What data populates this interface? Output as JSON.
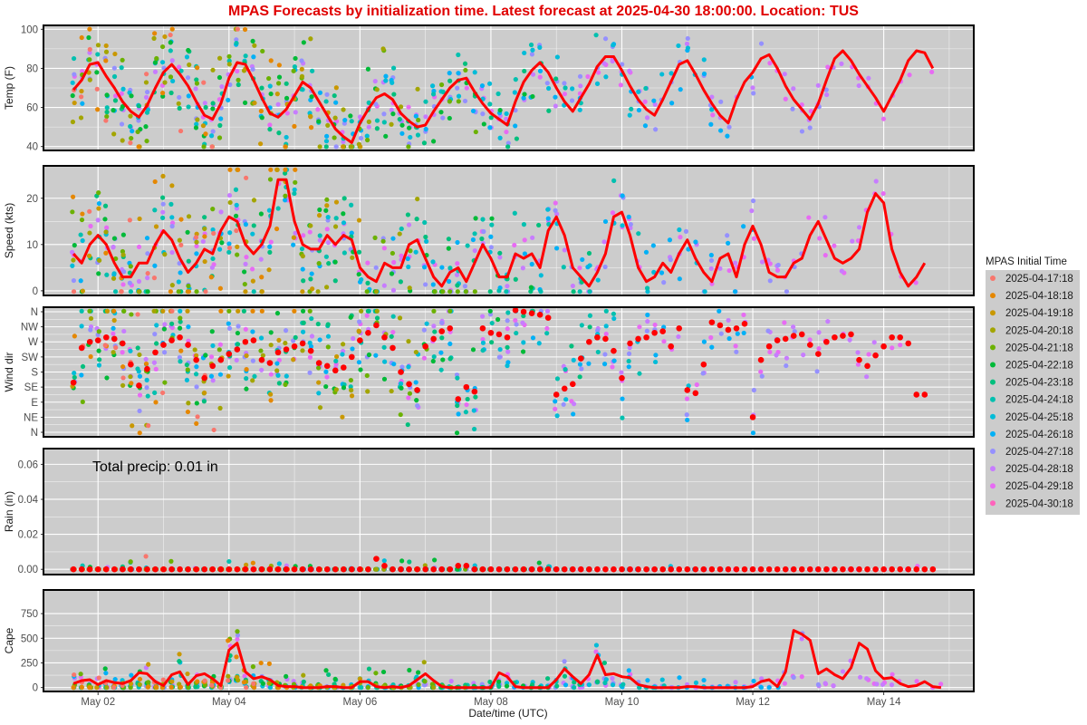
{
  "figure": {
    "title": "MPAS Forecasts by initialization time. Latest forecast at 2025-04-30 18:00:00.  Location: TUS",
    "xlabel": "Date/time (UTC)"
  },
  "legend": {
    "title": "MPAS Initial Time",
    "placement": "right",
    "items": [
      {
        "label": "2025-04-17:18",
        "color": "#F8766D"
      },
      {
        "label": "2025-04-18:18",
        "color": "#E58700"
      },
      {
        "label": "2025-04-19:18",
        "color": "#C99800"
      },
      {
        "label": "2025-04-20:18",
        "color": "#A3A500"
      },
      {
        "label": "2025-04-21:18",
        "color": "#6BB100"
      },
      {
        "label": "2025-04-22:18",
        "color": "#00BA38"
      },
      {
        "label": "2025-04-23:18",
        "color": "#00BF7D"
      },
      {
        "label": "2025-04-24:18",
        "color": "#00C0AF"
      },
      {
        "label": "2025-04-25:18",
        "color": "#00BCD8"
      },
      {
        "label": "2025-04-26:18",
        "color": "#00B0F6"
      },
      {
        "label": "2025-04-27:18",
        "color": "#9590FF"
      },
      {
        "label": "2025-04-28:18",
        "color": "#C77CFF"
      },
      {
        "label": "2025-04-29:18",
        "color": "#E76BF3"
      },
      {
        "label": "2025-04-30:18",
        "color": "#FF62BC"
      }
    ]
  },
  "colors": {
    "panel_bg": "#cccccc",
    "grid": "#ffffff",
    "latest_line": "#ff0000",
    "title": "#e00000"
  },
  "chart_data": [
    {
      "type": "line",
      "ylabel": "Temp (F)",
      "ylim": [
        38,
        102
      ],
      "yticks": [
        40,
        60,
        80,
        100
      ],
      "xticks": [
        {
          "x": "2025-05-02",
          "label": "May 02"
        },
        {
          "x": "2025-05-04",
          "label": "May 04"
        },
        {
          "x": "2025-05-06",
          "label": "May 06"
        },
        {
          "x": "2025-05-08",
          "label": "May 08"
        },
        {
          "x": "2025-05-10",
          "label": "May 10"
        },
        {
          "x": "2025-05-12",
          "label": "May 12"
        },
        {
          "x": "2025-05-14",
          "label": "May 14"
        }
      ],
      "grid": true,
      "series": [
        {
          "latest": true,
          "x": [
            "2025-05-01T15:00",
            "2025-05-01T18:00",
            "2025-05-01T21:00",
            "2025-05-02T00:00",
            "2025-05-02T03:00",
            "2025-05-02T06:00",
            "2025-05-02T09:00",
            "2025-05-02T12:00",
            "2025-05-02T15:00",
            "2025-05-02T18:00",
            "2025-05-02T21:00",
            "2025-05-03T00:00",
            "2025-05-03T03:00",
            "2025-05-03T06:00",
            "2025-05-03T09:00",
            "2025-05-03T12:00",
            "2025-05-03T15:00",
            "2025-05-03T18:00",
            "2025-05-03T21:00",
            "2025-05-04T00:00",
            "2025-05-04T03:00",
            "2025-05-04T06:00",
            "2025-05-04T09:00",
            "2025-05-04T12:00",
            "2025-05-04T15:00",
            "2025-05-04T18:00",
            "2025-05-04T21:00",
            "2025-05-05T00:00",
            "2025-05-05T03:00",
            "2025-05-05T06:00",
            "2025-05-05T09:00",
            "2025-05-05T12:00",
            "2025-05-05T15:00",
            "2025-05-05T18:00",
            "2025-05-05T21:00",
            "2025-05-06T00:00",
            "2025-05-06T03:00",
            "2025-05-06T06:00",
            "2025-05-06T09:00",
            "2025-05-06T12:00",
            "2025-05-06T15:00",
            "2025-05-06T18:00",
            "2025-05-06T21:00",
            "2025-05-07T00:00",
            "2025-05-07T03:00",
            "2025-05-07T06:00",
            "2025-05-07T09:00",
            "2025-05-07T12:00",
            "2025-05-07T15:00",
            "2025-05-07T18:00",
            "2025-05-07T21:00",
            "2025-05-08T00:00",
            "2025-05-08T03:00",
            "2025-05-08T06:00",
            "2025-05-08T09:00",
            "2025-05-08T12:00",
            "2025-05-08T15:00",
            "2025-05-08T18:00",
            "2025-05-08T21:00",
            "2025-05-09T00:00",
            "2025-05-09T03:00",
            "2025-05-09T06:00",
            "2025-05-09T09:00",
            "2025-05-09T12:00",
            "2025-05-09T15:00",
            "2025-05-09T18:00",
            "2025-05-09T21:00",
            "2025-05-10T00:00",
            "2025-05-10T03:00",
            "2025-05-10T06:00",
            "2025-05-10T09:00",
            "2025-05-10T12:00",
            "2025-05-10T15:00",
            "2025-05-10T18:00",
            "2025-05-10T21:00",
            "2025-05-11T00:00",
            "2025-05-11T03:00",
            "2025-05-11T06:00",
            "2025-05-11T09:00",
            "2025-05-11T12:00",
            "2025-05-11T15:00",
            "2025-05-11T18:00",
            "2025-05-11T21:00",
            "2025-05-12T00:00",
            "2025-05-12T03:00",
            "2025-05-12T06:00",
            "2025-05-12T09:00",
            "2025-05-12T12:00",
            "2025-05-12T15:00",
            "2025-05-12T18:00",
            "2025-05-12T21:00",
            "2025-05-13T00:00",
            "2025-05-13T03:00",
            "2025-05-13T06:00",
            "2025-05-13T09:00",
            "2025-05-13T12:00",
            "2025-05-13T15:00",
            "2025-05-13T18:00",
            "2025-05-13T21:00",
            "2025-05-14T00:00",
            "2025-05-14T03:00",
            "2025-05-14T06:00",
            "2025-05-14T09:00",
            "2025-05-14T12:00",
            "2025-05-14T15:00",
            "2025-05-14T18:00"
          ],
          "values": [
            69,
            74,
            82,
            83,
            76,
            70,
            63,
            58,
            55,
            61,
            70,
            78,
            82,
            77,
            71,
            63,
            56,
            54,
            62,
            75,
            83,
            82,
            74,
            65,
            57,
            55,
            59,
            66,
            73,
            70,
            63,
            56,
            49,
            45,
            42,
            52,
            59,
            65,
            67,
            64,
            57,
            53,
            50,
            51,
            58,
            64,
            70,
            74,
            75,
            68,
            62,
            57,
            54,
            51,
            63,
            73,
            79,
            83,
            78,
            70,
            63,
            58,
            65,
            72,
            81,
            86,
            86,
            79,
            71,
            64,
            59,
            56,
            64,
            73,
            82,
            84,
            77,
            69,
            62,
            56,
            52,
            64,
            73,
            78,
            85,
            87,
            80,
            71,
            64,
            59,
            54,
            62,
            74,
            85,
            89,
            84,
            77,
            71,
            65,
            58,
            66,
            74,
            84,
            89,
            88,
            80
          ]
        }
      ]
    },
    {
      "type": "line",
      "ylabel": "Speed (kts)",
      "ylim": [
        -1,
        27
      ],
      "yticks": [
        0,
        10,
        20
      ],
      "grid": true,
      "series": [
        {
          "latest": true,
          "values": [
            8,
            6,
            10,
            12,
            10,
            6,
            3,
            3,
            6,
            6,
            10,
            13,
            11,
            7,
            4,
            6,
            9,
            8,
            13,
            16,
            15,
            10,
            8,
            10,
            14,
            24,
            24,
            15,
            10,
            9,
            9,
            12,
            10,
            12,
            11,
            5,
            3,
            2,
            6,
            5,
            5,
            10,
            11,
            7,
            3,
            1,
            4,
            5,
            2,
            6,
            10,
            7,
            3,
            3,
            8,
            7,
            8,
            5,
            13,
            16,
            12,
            5,
            3,
            1,
            4,
            8,
            16,
            17,
            12,
            5,
            2,
            3,
            6,
            4,
            8,
            11,
            7,
            4,
            2,
            7,
            8,
            3,
            10,
            14,
            10,
            4,
            3,
            3,
            6,
            7,
            12,
            15,
            11,
            7,
            6,
            7,
            9,
            17,
            21,
            19,
            9,
            4,
            1,
            3,
            6
          ]
        }
      ]
    },
    {
      "type": "line",
      "ylabel": "Wind dir",
      "ylim": [
        -0.3,
        8.3
      ],
      "yticks": [
        0,
        1,
        2,
        3,
        4,
        5,
        6,
        7,
        8
      ],
      "ytick_labels": [
        "N",
        "NE",
        "E",
        "SE",
        "S",
        "SW",
        "W",
        "NW",
        "N"
      ],
      "grid": true,
      "series": [
        {
          "latest": true,
          "values": [
            3.3,
            5.6,
            6.0,
            6.1,
            6.3,
            6.2,
            5.9,
            4.5,
            3.1,
            4.2,
            5.3,
            5.8,
            6.1,
            6.3,
            5.8,
            4.8,
            3.6,
            4.4,
            4.8,
            5.2,
            5.5,
            6.0,
            6.1,
            4.8,
            4.6,
            5.3,
            5.5,
            5.7,
            5.9,
            5.4,
            4.6,
            4.4,
            4.1,
            4.3,
            5.0,
            6.1,
            6.6,
            7.1,
            6.3,
            5.6,
            4.0,
            3.2,
            2.8,
            5.7,
            6.2,
            6.7,
            6.9,
            2.2,
            3.0,
            2.7,
            6.9,
            6.6,
            6.5,
            6.3,
            8.1,
            8.0,
            7.9,
            7.8,
            7.6,
            2.5,
            2.9,
            3.2,
            4.9,
            6.0,
            6.3,
            6.2,
            5.4,
            3.6,
            5.9,
            6.2,
            6.3,
            6.6,
            6.7,
            5.7,
            6.9,
            2.8,
            2.6,
            4.5,
            7.3,
            7.1,
            6.8,
            6.9,
            7.2,
            1.0,
            4.8,
            5.7,
            6.1,
            6.2,
            6.4,
            6.5,
            5.8,
            5.2,
            6.0,
            6.3,
            6.4,
            6.5,
            4.8,
            4.4,
            5.1,
            5.7,
            6.3,
            6.3,
            5.9,
            2.5,
            2.5
          ]
        }
      ]
    },
    {
      "type": "scatter",
      "ylabel": "Rain (in)",
      "ylim": [
        -0.003,
        0.069
      ],
      "yticks": [
        0.0,
        0.02,
        0.04,
        0.06
      ],
      "ytick_labels": [
        "0.00",
        "0.02",
        "0.04",
        "0.06"
      ],
      "grid": true,
      "annotation": "Total precip: 0.01 in",
      "series": [
        {
          "latest": true,
          "values": [
            0,
            0,
            0,
            0,
            0,
            0,
            0,
            0,
            0,
            0,
            0,
            0,
            0,
            0,
            0,
            0,
            0,
            0,
            0,
            0,
            0,
            0,
            0,
            0,
            0,
            0,
            0,
            0,
            0,
            0,
            0,
            0,
            0,
            0,
            0,
            0,
            0,
            0.006,
            0.002,
            0,
            0,
            0,
            0,
            0,
            0,
            0,
            0,
            0.002,
            0.002,
            0,
            0,
            0,
            0,
            0,
            0,
            0,
            0,
            0,
            0,
            0,
            0,
            0,
            0,
            0,
            0,
            0,
            0,
            0,
            0,
            0,
            0,
            0,
            0,
            0,
            0,
            0,
            0,
            0,
            0,
            0,
            0,
            0,
            0,
            0,
            0,
            0,
            0,
            0,
            0,
            0,
            0,
            0,
            0,
            0,
            0,
            0,
            0,
            0,
            0,
            0,
            0,
            0,
            0,
            0,
            0,
            0
          ]
        }
      ]
    },
    {
      "type": "line",
      "ylabel": "Cape",
      "ylim": [
        -40,
        990
      ],
      "yticks": [
        0,
        250,
        500,
        750
      ],
      "grid": true,
      "series": [
        {
          "latest": true,
          "values": [
            40,
            70,
            80,
            30,
            70,
            50,
            40,
            70,
            150,
            140,
            60,
            20,
            130,
            160,
            30,
            120,
            140,
            90,
            20,
            380,
            450,
            160,
            90,
            110,
            80,
            20,
            10,
            10,
            0,
            0,
            0,
            10,
            10,
            0,
            0,
            60,
            60,
            10,
            0,
            10,
            0,
            20,
            80,
            140,
            70,
            10,
            0,
            0,
            0,
            0,
            0,
            0,
            150,
            110,
            10,
            0,
            0,
            0,
            0,
            80,
            190,
            110,
            40,
            130,
            330,
            130,
            140,
            110,
            100,
            30,
            10,
            0,
            0,
            0,
            0,
            10,
            10,
            0,
            0,
            0,
            0,
            0,
            0,
            10,
            60,
            80,
            10,
            160,
            580,
            540,
            480,
            140,
            190,
            130,
            90,
            200,
            450,
            390,
            170,
            90,
            100,
            40,
            10,
            20,
            60,
            10,
            0
          ]
        }
      ]
    }
  ]
}
